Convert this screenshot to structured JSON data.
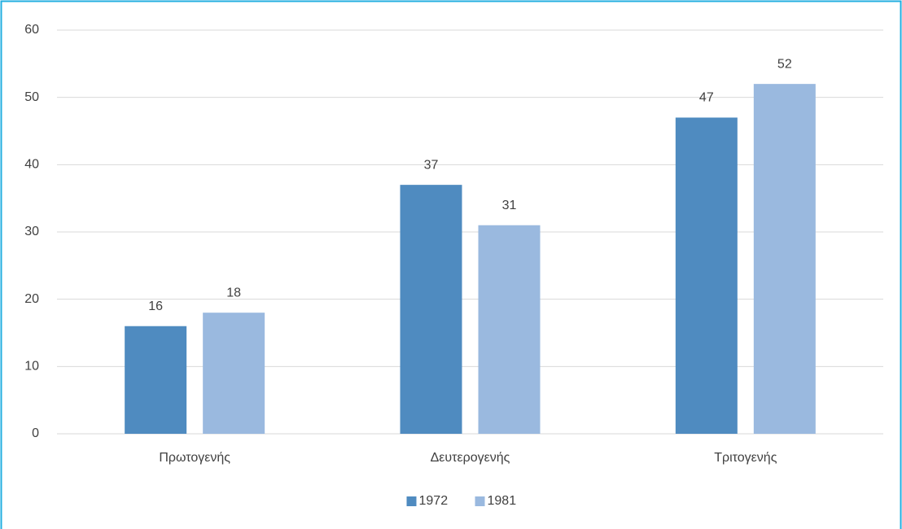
{
  "chart_data": {
    "type": "bar",
    "categories": [
      "Πρωτογενής",
      "Δευτερογενής",
      "Τριτογενής"
    ],
    "series": [
      {
        "name": "1972",
        "color": "#4f8bc0",
        "values": [
          16,
          37,
          47
        ]
      },
      {
        "name": "1981",
        "color": "#9ab9df",
        "values": [
          18,
          31,
          52
        ]
      }
    ],
    "ylim": [
      0,
      60
    ],
    "yticks": [
      0,
      10,
      20,
      30,
      40,
      50,
      60
    ],
    "grid": true,
    "legend": "bottom"
  }
}
